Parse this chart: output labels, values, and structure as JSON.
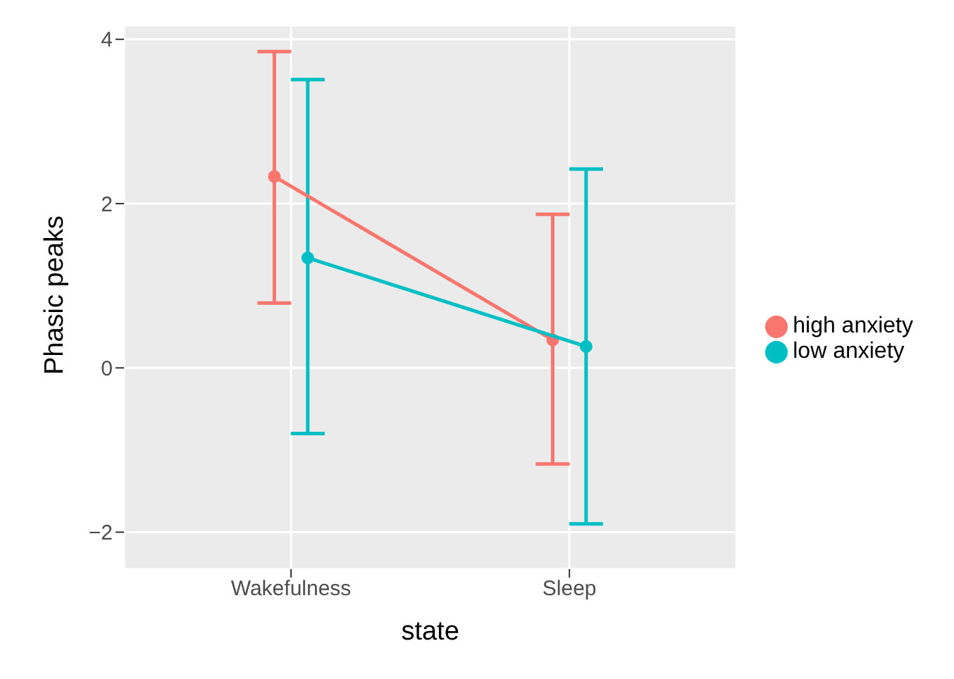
{
  "chart_data": {
    "type": "line",
    "xlabel": "state",
    "ylabel": "Phasic peaks",
    "categories": [
      "Wakefulness",
      "Sleep"
    ],
    "series": [
      {
        "name": "high anxiety",
        "color": "#f8766d",
        "values": [
          2.33,
          0.34
        ],
        "errors": [
          [
            0.79,
            3.85
          ],
          [
            -1.17,
            1.87
          ]
        ]
      },
      {
        "name": "low anxiety",
        "color": "#00bfc4",
        "values": [
          1.34,
          0.26
        ],
        "errors": [
          [
            -0.8,
            3.51
          ],
          [
            -1.9,
            2.42
          ]
        ]
      }
    ],
    "ylim": [
      -2.45,
      4.17
    ],
    "yticks": [
      -2,
      0,
      2,
      4
    ],
    "grid": true,
    "legend": "right",
    "marker": "circle",
    "line_style": "solid"
  }
}
